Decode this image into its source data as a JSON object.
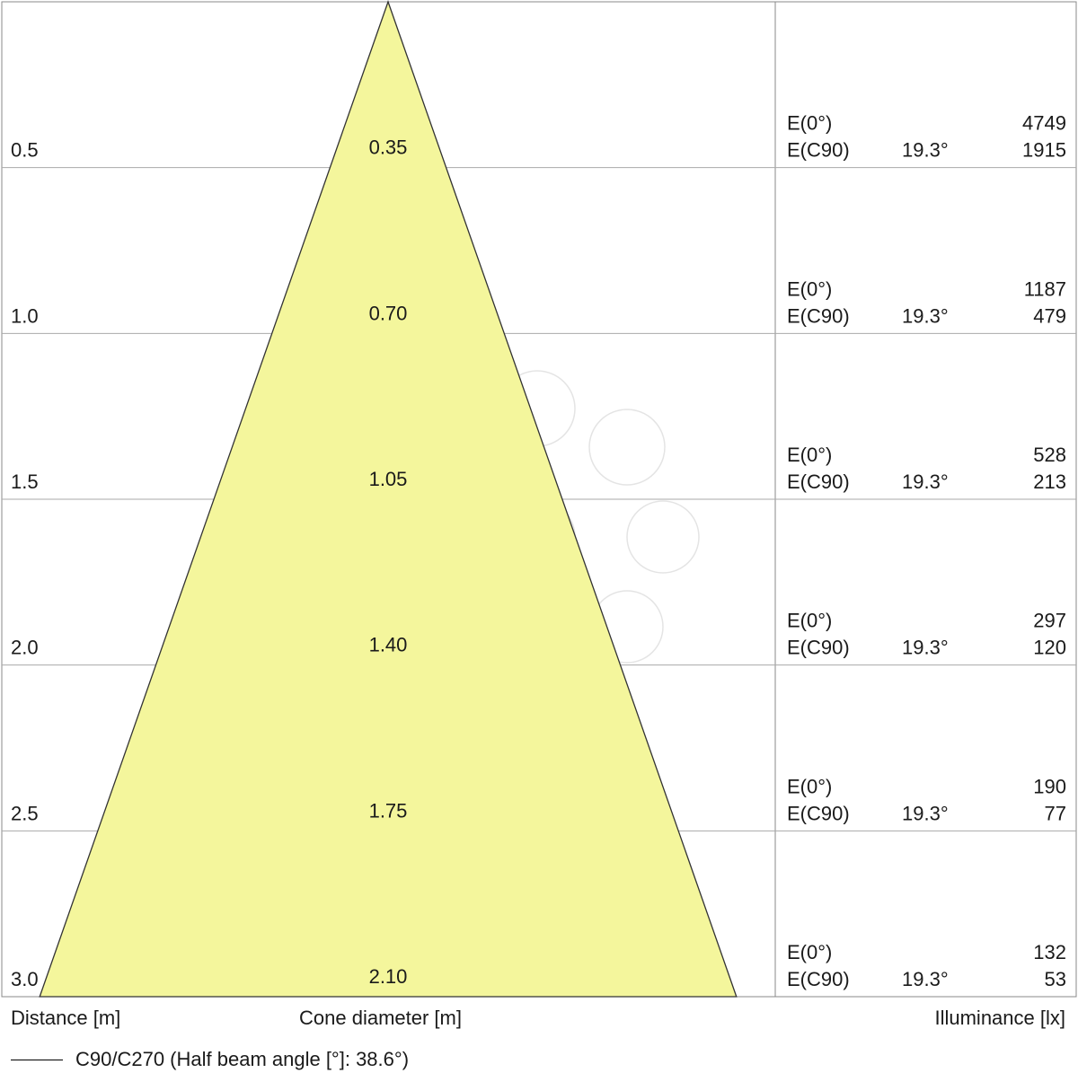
{
  "chart_data": {
    "type": "area",
    "title": "",
    "xlabel": "Distance [m]",
    "cone_label": "Cone diameter [m]",
    "ylabel": "Illuminance [lx]",
    "distances": [
      "0.5",
      "1.0",
      "1.5",
      "2.0",
      "2.5",
      "3.0"
    ],
    "distance_values": [
      0.5,
      1.0,
      1.5,
      2.0,
      2.5,
      3.0
    ],
    "cone_diameters": [
      "0.35",
      "0.70",
      "1.05",
      "1.40",
      "1.75",
      "2.10"
    ],
    "cone_diameter_values": [
      0.35,
      0.7,
      1.05,
      1.4,
      1.75,
      2.1
    ],
    "illuminance_rows": [
      {
        "e0_label": "E(0°)",
        "e0": "4749",
        "ec_label": "E(C90)",
        "angle": "19.3°",
        "ec": "1915"
      },
      {
        "e0_label": "E(0°)",
        "e0": "1187",
        "ec_label": "E(C90)",
        "angle": "19.3°",
        "ec": "479"
      },
      {
        "e0_label": "E(0°)",
        "e0": "528",
        "ec_label": "E(C90)",
        "angle": "19.3°",
        "ec": "213"
      },
      {
        "e0_label": "E(0°)",
        "e0": "297",
        "ec_label": "E(C90)",
        "angle": "19.3°",
        "ec": "120"
      },
      {
        "e0_label": "E(0°)",
        "e0": "190",
        "ec_label": "E(C90)",
        "angle": "19.3°",
        "ec": "77"
      },
      {
        "e0_label": "E(0°)",
        "e0": "132",
        "ec_label": "E(C90)",
        "angle": "19.3°",
        "ec": "53"
      }
    ],
    "distance_range": [
      0,
      3.0
    ],
    "legend": "C90/C270 (Half beam angle [°]: 38.6°)",
    "half_beam_angle_deg": 38.6,
    "grid": true
  },
  "colors": {
    "cone_fill": "#f4f69c",
    "cone_stroke": "#333333",
    "grid": "#aaaaaa",
    "frame": "#888888"
  }
}
